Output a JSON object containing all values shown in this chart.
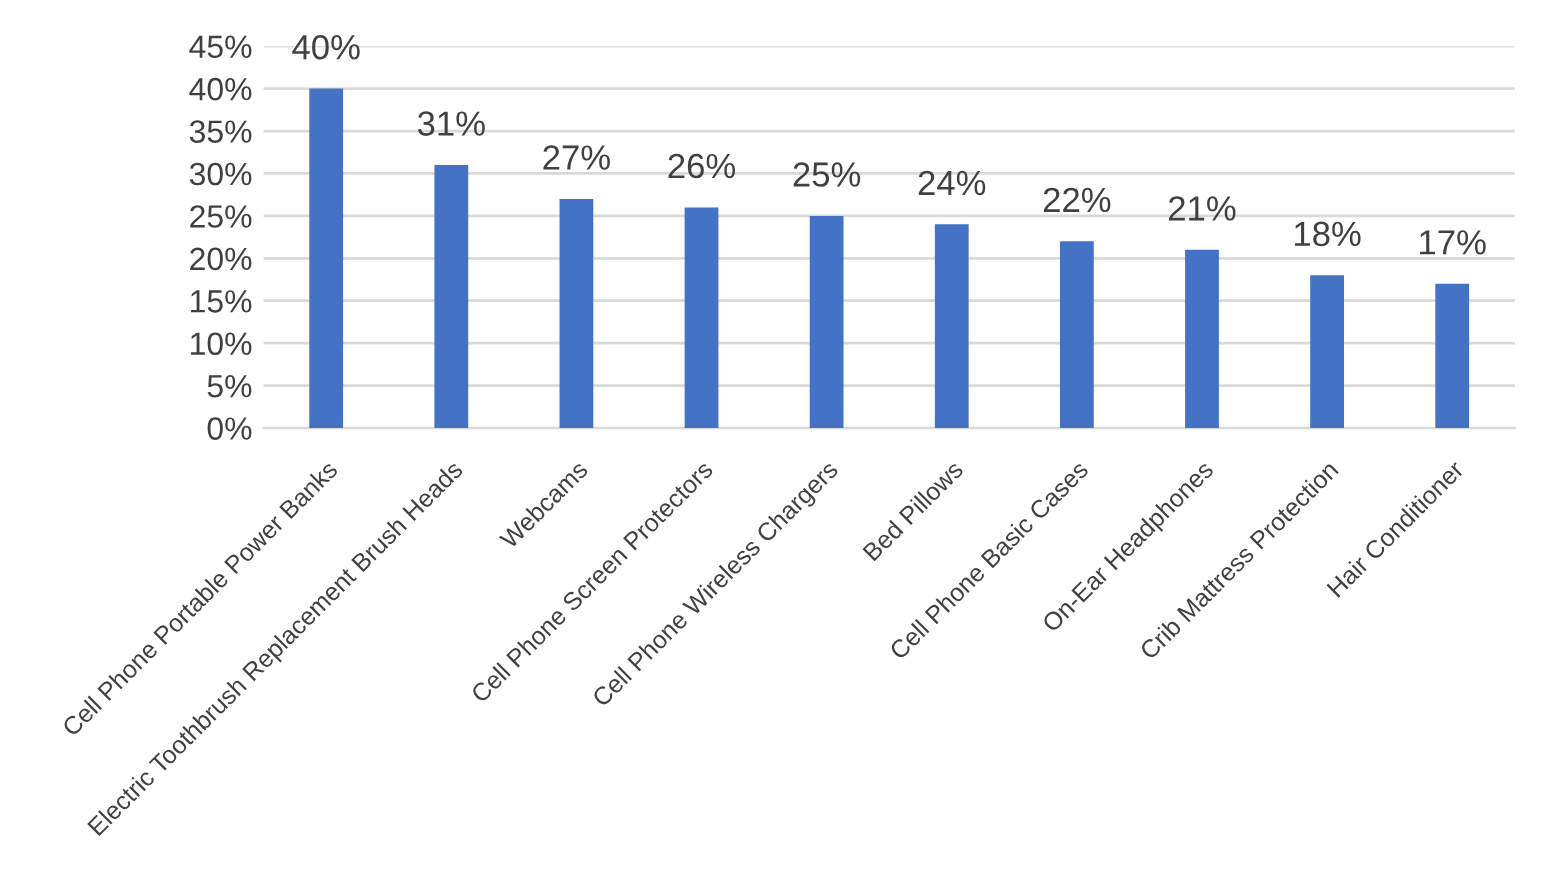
{
  "chart_data": {
    "type": "bar",
    "categories": [
      "Cell Phone Portable Power Banks",
      "Electric Toothbrush Replacement Brush Heads",
      "Webcams",
      "Cell Phone Screen Protectors",
      "Cell Phone Wireless Chargers",
      "Bed Pillows",
      "Cell Phone Basic Cases",
      "On-Ear Headphones",
      "Crib Mattress Protection",
      "Hair Conditioner"
    ],
    "values": [
      40,
      31,
      27,
      26,
      25,
      24,
      22,
      21,
      18,
      17
    ],
    "value_labels": [
      "40%",
      "31%",
      "27%",
      "26%",
      "25%",
      "24%",
      "22%",
      "21%",
      "18%",
      "17%"
    ],
    "color": "#4472c4",
    "ylim": [
      0,
      45
    ],
    "yticks": [
      {
        "value": 0,
        "label": "0%"
      },
      {
        "value": 5,
        "label": "5%"
      },
      {
        "value": 10,
        "label": "10%"
      },
      {
        "value": 15,
        "label": "15%"
      },
      {
        "value": 20,
        "label": "20%"
      },
      {
        "value": 25,
        "label": "25%"
      },
      {
        "value": 30,
        "label": "30%"
      },
      {
        "value": 35,
        "label": "35%"
      },
      {
        "value": 40,
        "label": "40%"
      },
      {
        "value": 45,
        "label": "45%"
      }
    ],
    "grid": "y",
    "legend": false
  }
}
